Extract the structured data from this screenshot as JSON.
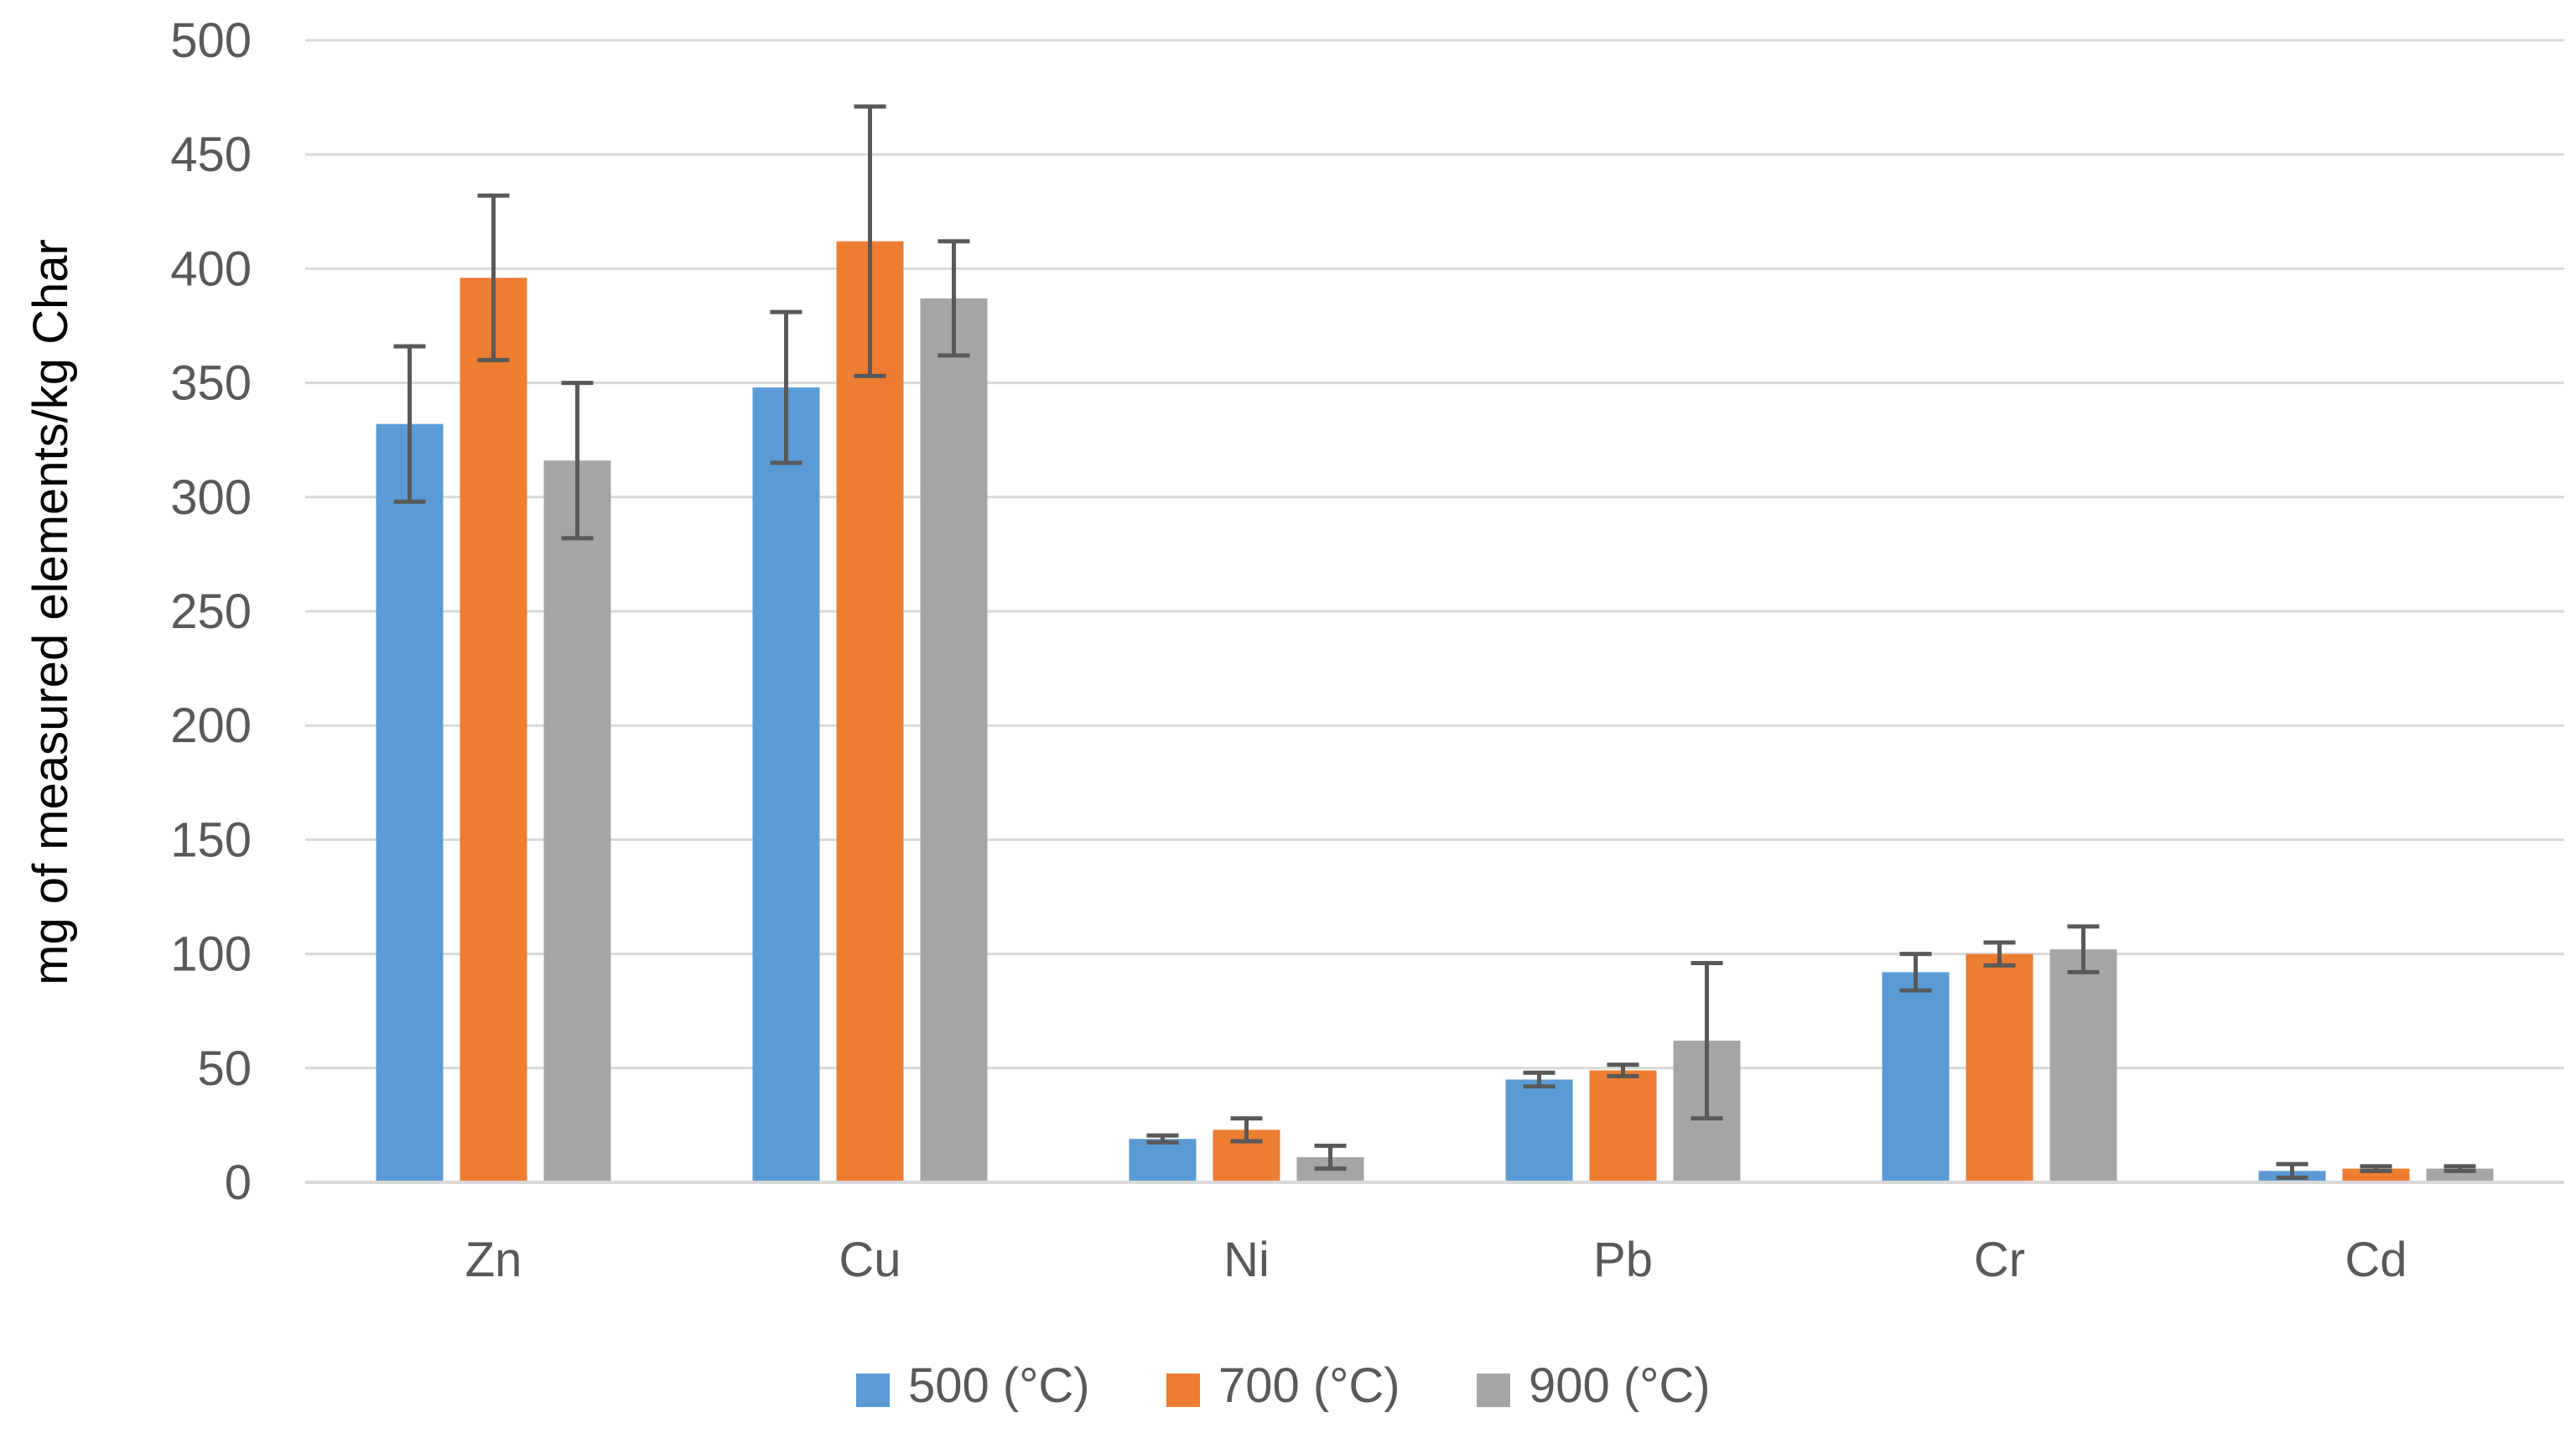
{
  "chart_data": {
    "type": "bar",
    "title": "",
    "xlabel": "",
    "ylabel": "mg of measured elements/kg Char",
    "ylim": [
      0,
      500
    ],
    "y_ticks": [
      0,
      50,
      100,
      150,
      200,
      250,
      300,
      350,
      400,
      450,
      500
    ],
    "grid": true,
    "legend_position": "bottom-center",
    "categories": [
      "Zn",
      "Cu",
      "Ni",
      "Pb",
      "Cr",
      "Cd"
    ],
    "series": [
      {
        "name": "500 (°C)",
        "color": "#5b9bd5",
        "values": [
          332,
          348,
          19,
          45,
          92,
          5
        ],
        "errors": [
          34,
          33,
          1.5,
          3,
          8,
          3
        ]
      },
      {
        "name": "700 (°C)",
        "color": "#ed7d31",
        "values": [
          396,
          412,
          23,
          49,
          100,
          6
        ],
        "errors": [
          36,
          59,
          5,
          2.5,
          5,
          1
        ]
      },
      {
        "name": "900 (°C)",
        "color": "#a5a5a5",
        "values": [
          316,
          387,
          11,
          62,
          102,
          6
        ],
        "errors": [
          34,
          25,
          5,
          34,
          10,
          1
        ]
      }
    ]
  }
}
